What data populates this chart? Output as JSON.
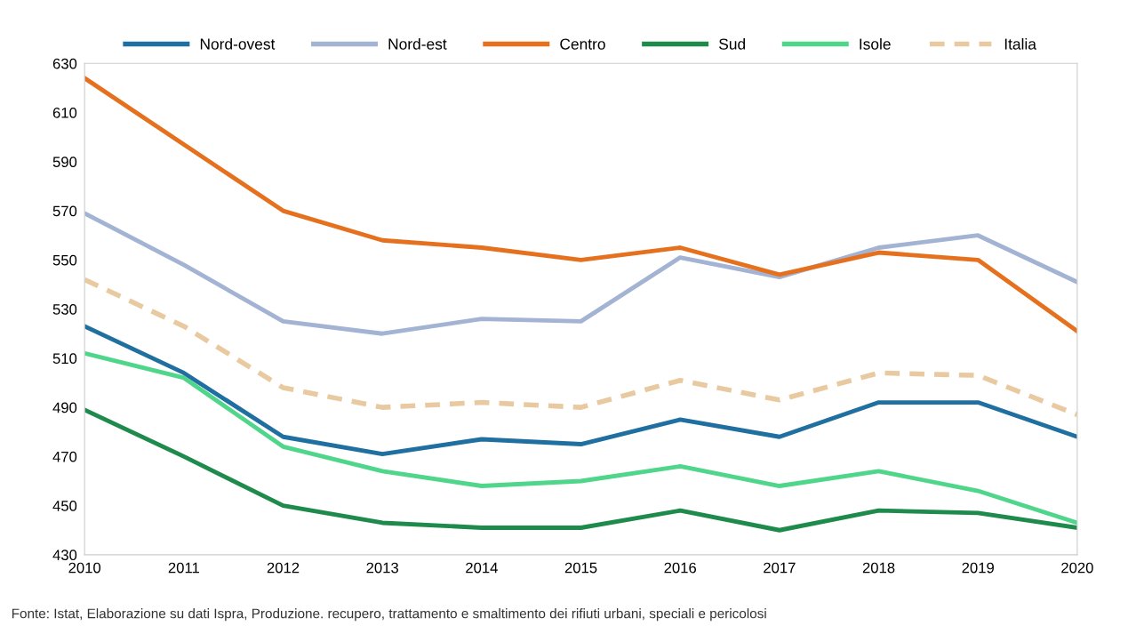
{
  "chart_data": {
    "type": "line",
    "x": [
      2010,
      2011,
      2012,
      2013,
      2014,
      2015,
      2016,
      2017,
      2018,
      2019,
      2020
    ],
    "series": [
      {
        "name": "Nord-ovest",
        "color": "#1f6fa0",
        "values": [
          523,
          504,
          478,
          471,
          477,
          475,
          485,
          478,
          492,
          492,
          478
        ]
      },
      {
        "name": "Nord-est",
        "color": "#a3b3d3",
        "values": [
          569,
          548,
          525,
          520,
          526,
          525,
          551,
          543,
          555,
          560,
          541
        ]
      },
      {
        "name": "Centro",
        "color": "#e5711f",
        "values": [
          624,
          597,
          570,
          558,
          555,
          550,
          555,
          544,
          553,
          550,
          521
        ]
      },
      {
        "name": "Sud",
        "color": "#1e8a4c",
        "values": [
          489,
          470,
          450,
          443,
          441,
          441,
          448,
          440,
          448,
          447,
          441
        ]
      },
      {
        "name": "Isole",
        "color": "#4fd68a",
        "values": [
          512,
          502,
          474,
          464,
          458,
          460,
          466,
          458,
          464,
          456,
          443
        ]
      },
      {
        "name": "Italia",
        "color": "#e8c9a0",
        "line_style": "dashed",
        "values": [
          542,
          523,
          498,
          490,
          492,
          490,
          501,
          493,
          504,
          503,
          487
        ]
      }
    ],
    "xlim": [
      2010,
      2020
    ],
    "xticks": [
      2010,
      2011,
      2012,
      2013,
      2014,
      2015,
      2016,
      2017,
      2018,
      2019,
      2020
    ],
    "ylim": [
      430,
      630
    ],
    "yticks": [
      430,
      450,
      470,
      490,
      510,
      530,
      550,
      570,
      590,
      610,
      630
    ],
    "grid": false,
    "legend": "top",
    "marker": "none",
    "annotations": [
      "Fonte: Istat, Elaborazione su dati Ispra, Produzione. recupero, trattamento e smaltimento dei rifiuti urbani, speciali e pericolosi"
    ]
  }
}
